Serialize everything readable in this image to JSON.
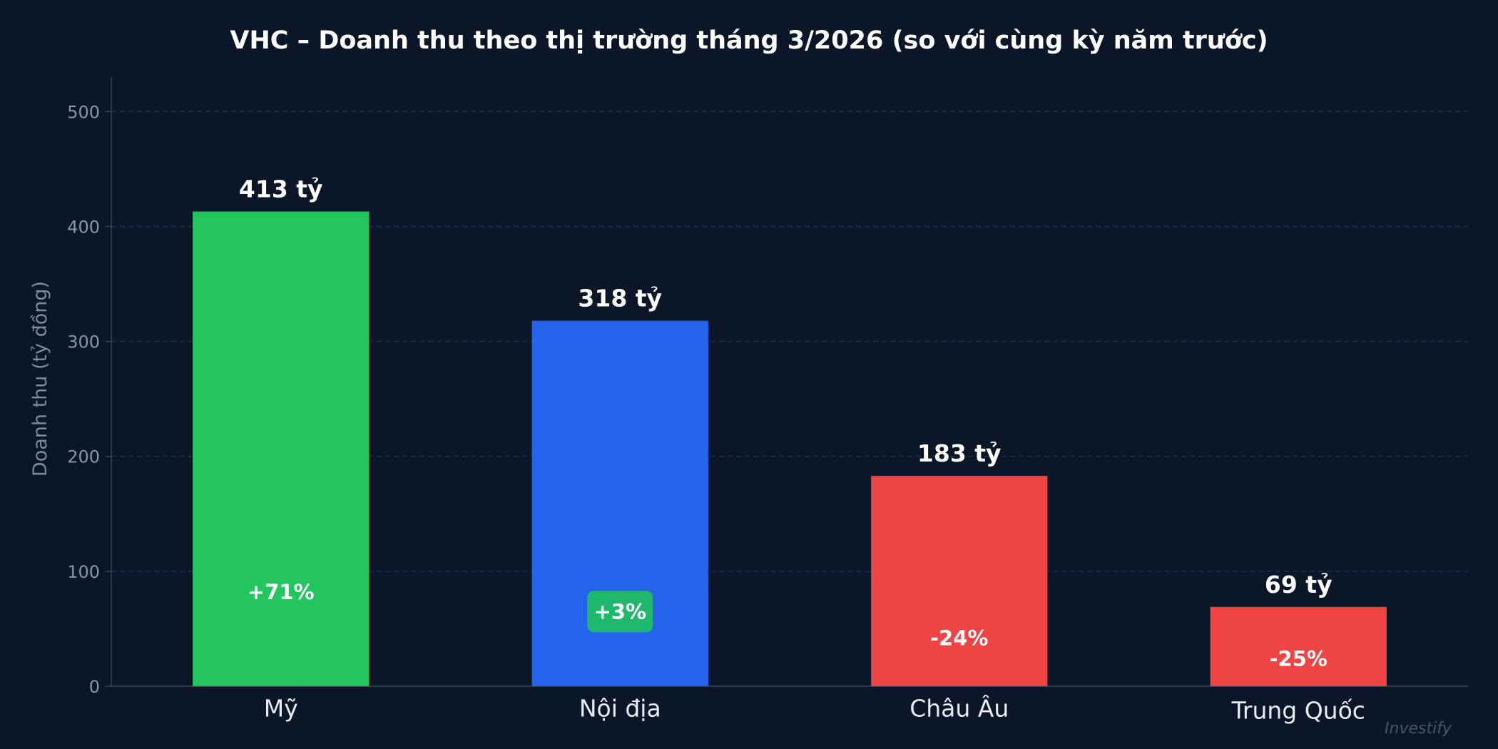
{
  "chart_data": {
    "type": "bar",
    "title": "VHC – Doanh thu theo thị trường tháng 3/2026 (so với cùng kỳ năm trước)",
    "ylabel": "Doanh thu (tỷ đồng)",
    "xlabel": "",
    "ylim": [
      0,
      530
    ],
    "yticks": [
      0,
      100,
      200,
      300,
      400,
      500
    ],
    "grid": true,
    "categories": [
      "Mỹ",
      "Nội địa",
      "Châu Âu",
      "Trung Quốc"
    ],
    "values": [
      413,
      318,
      183,
      69
    ],
    "value_labels": [
      "413 tỷ",
      "318 tỷ",
      "183 tỷ",
      "69 tỷ"
    ],
    "changes": [
      "+71%",
      "+3%",
      "-24%",
      "-25%"
    ],
    "change_label_y": [
      82,
      65,
      42,
      24
    ],
    "bar_colors": [
      "#22c55e",
      "#2563eb",
      "#ef4444",
      "#ef4444"
    ],
    "change_badges": [
      false,
      true,
      false,
      false
    ],
    "badge_color": "#1fb86c"
  },
  "watermark": "Investify"
}
